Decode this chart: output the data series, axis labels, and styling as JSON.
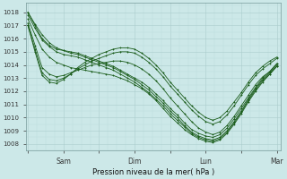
{
  "xlabel": "Pression niveau de la mer( hPa )",
  "bg_color": "#cce8e8",
  "grid_color_major": "#aacccc",
  "grid_color_minor": "#bbdddd",
  "line_color": "#1a5c1a",
  "marker": "+",
  "ylim": [
    1007.5,
    1018.7
  ],
  "yticks": [
    1008,
    1009,
    1010,
    1011,
    1012,
    1013,
    1014,
    1015,
    1016,
    1017,
    1018
  ],
  "xtick_labels": [
    "",
    "Sam",
    "",
    "Dim",
    "",
    "Lun",
    "",
    "Mar"
  ],
  "xtick_positions": [
    0,
    1,
    2,
    3,
    4,
    5,
    6,
    7
  ],
  "xlim": [
    -0.05,
    7.1
  ],
  "series": [
    [
      1018.0,
      1017.0,
      1016.0,
      1015.5,
      1015.2,
      1015.1,
      1015.0,
      1014.9,
      1014.7,
      1014.5,
      1014.3,
      1014.1,
      1013.9,
      1013.6,
      1013.3,
      1013.0,
      1012.7,
      1012.3,
      1011.8,
      1011.3,
      1010.7,
      1010.2,
      1009.6,
      1009.1,
      1008.8,
      1008.6,
      1008.5,
      1008.7,
      1009.2,
      1009.9,
      1010.7,
      1011.5,
      1012.3,
      1013.0,
      1013.5,
      1014.1
    ],
    [
      1018.0,
      1017.1,
      1016.3,
      1015.7,
      1015.3,
      1015.1,
      1014.9,
      1014.8,
      1014.6,
      1014.4,
      1014.2,
      1014.0,
      1013.8,
      1013.5,
      1013.2,
      1012.9,
      1012.5,
      1012.1,
      1011.6,
      1011.1,
      1010.5,
      1010.0,
      1009.4,
      1008.9,
      1008.6,
      1008.4,
      1008.3,
      1008.5,
      1009.0,
      1009.7,
      1010.5,
      1011.4,
      1012.2,
      1012.9,
      1013.4,
      1014.0
    ],
    [
      1017.8,
      1016.8,
      1015.9,
      1015.4,
      1015.0,
      1014.8,
      1014.7,
      1014.6,
      1014.4,
      1014.2,
      1014.0,
      1013.8,
      1013.6,
      1013.3,
      1013.0,
      1012.7,
      1012.3,
      1011.9,
      1011.4,
      1010.9,
      1010.3,
      1009.8,
      1009.3,
      1008.8,
      1008.5,
      1008.3,
      1008.2,
      1008.4,
      1008.9,
      1009.6,
      1010.4,
      1011.3,
      1012.1,
      1012.8,
      1013.3,
      1013.9
    ],
    [
      1017.5,
      1016.3,
      1015.2,
      1014.6,
      1014.2,
      1014.0,
      1013.8,
      1013.7,
      1013.6,
      1013.5,
      1013.4,
      1013.3,
      1013.2,
      1013.0,
      1012.8,
      1012.5,
      1012.2,
      1011.8,
      1011.3,
      1010.7,
      1010.1,
      1009.6,
      1009.1,
      1008.7,
      1008.4,
      1008.2,
      1008.1,
      1008.3,
      1008.8,
      1009.5,
      1010.3,
      1011.2,
      1012.0,
      1012.7,
      1013.3,
      1013.9
    ],
    [
      1017.2,
      1015.5,
      1013.8,
      1013.3,
      1013.1,
      1013.2,
      1013.4,
      1013.6,
      1013.8,
      1014.0,
      1014.1,
      1014.2,
      1014.3,
      1014.3,
      1014.2,
      1014.0,
      1013.7,
      1013.3,
      1012.8,
      1012.2,
      1011.5,
      1010.9,
      1010.3,
      1009.7,
      1009.2,
      1008.9,
      1008.7,
      1008.9,
      1009.4,
      1010.1,
      1010.9,
      1011.7,
      1012.5,
      1013.1,
      1013.5,
      1014.1
    ],
    [
      1017.0,
      1015.2,
      1013.4,
      1012.9,
      1012.8,
      1013.0,
      1013.3,
      1013.7,
      1014.0,
      1014.3,
      1014.5,
      1014.7,
      1014.9,
      1015.0,
      1015.0,
      1014.9,
      1014.6,
      1014.2,
      1013.7,
      1013.1,
      1012.4,
      1011.8,
      1011.2,
      1010.6,
      1010.1,
      1009.7,
      1009.5,
      1009.7,
      1010.2,
      1010.9,
      1011.7,
      1012.5,
      1013.2,
      1013.7,
      1014.1,
      1014.5
    ],
    [
      1017.0,
      1015.0,
      1013.2,
      1012.7,
      1012.6,
      1012.9,
      1013.3,
      1013.8,
      1014.2,
      1014.5,
      1014.8,
      1015.0,
      1015.2,
      1015.3,
      1015.3,
      1015.2,
      1014.9,
      1014.5,
      1014.0,
      1013.4,
      1012.7,
      1012.1,
      1011.5,
      1010.9,
      1010.4,
      1010.0,
      1009.8,
      1010.0,
      1010.5,
      1011.2,
      1011.9,
      1012.7,
      1013.4,
      1013.9,
      1014.3,
      1014.6
    ]
  ]
}
